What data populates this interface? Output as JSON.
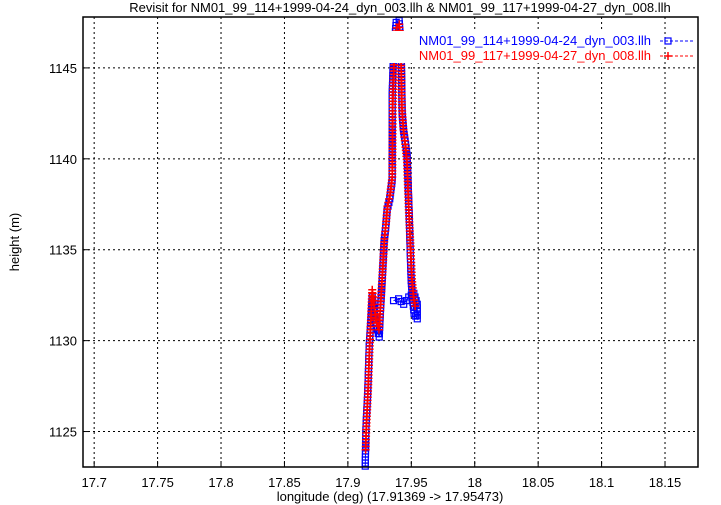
{
  "chart_data": {
    "type": "line",
    "title": "Revisit for NM01_99_114+1999-04-24_dyn_003.llh & NM01_99_117+1999-04-27_dyn_008.llh",
    "xlabel": "longitude (deg) (17.91369 -> 17.95473)",
    "ylabel": "height (m)",
    "xlim": [
      17.6912,
      18.176
    ],
    "ylim": [
      1123.05,
      1147.8
    ],
    "xticks": [
      "17.7",
      "17.75",
      "17.8",
      "17.85",
      "17.9",
      "17.95",
      "18",
      "18.05",
      "18.1",
      "18.15"
    ],
    "yticks": [
      "1125",
      "1130",
      "1135",
      "1140",
      "1145"
    ],
    "grid": true,
    "legend_position": "top-right",
    "series": [
      {
        "name": "NM01_99_114+1999-04-24_dyn_003.llh",
        "color": "#0000ff",
        "marker": "square",
        "x": [
          17.9137,
          17.9142,
          17.9148,
          17.9155,
          17.9162,
          17.9168,
          17.918,
          17.9192,
          17.9205,
          17.922,
          17.9247,
          17.9258,
          17.927,
          17.9286,
          17.9298,
          17.931,
          17.933,
          17.9349,
          17.9349,
          17.9349,
          17.9349,
          17.936,
          17.9381,
          17.9404,
          17.942,
          17.9428,
          17.944,
          17.9455,
          17.9467,
          17.9483,
          17.9491,
          17.9499,
          17.951,
          17.9522,
          17.9547,
          17.9547,
          17.952,
          17.948,
          17.944,
          17.94,
          17.936
        ],
        "y": [
          1123.1,
          1125.1,
          1126.0,
          1126.9,
          1128.3,
          1129.7,
          1131.0,
          1132.4,
          1131.6,
          1131.0,
          1130.2,
          1131.8,
          1133.3,
          1135.5,
          1136.2,
          1137.2,
          1137.8,
          1138.8,
          1139.9,
          1141.8,
          1143.5,
          1145.8,
          1147.5,
          1147.6,
          1146.2,
          1142.5,
          1141.5,
          1140.8,
          1140.2,
          1137.0,
          1135.0,
          1133.3,
          1132.3,
          1131.5,
          1131.2,
          1132.0,
          1132.6,
          1132.4,
          1132.0,
          1132.3,
          1132.2
        ]
      },
      {
        "name": "NM01_99_117+1999-04-27_dyn_008.llh",
        "color": "#ff0000",
        "marker": "plus",
        "x": [
          17.914,
          17.9146,
          17.9152,
          17.916,
          17.9168,
          17.9178,
          17.9192,
          17.9205,
          17.922,
          17.9245,
          17.9258,
          17.9272,
          17.9288,
          17.93,
          17.9312,
          17.9332,
          17.935,
          17.9352,
          17.9354,
          17.9365,
          17.9385,
          17.9405,
          17.9418,
          17.9426,
          17.9438,
          17.9452,
          17.9466,
          17.948,
          17.9494,
          17.9505,
          17.9518,
          17.953
        ],
        "y": [
          1124.0,
          1125.3,
          1126.2,
          1127.4,
          1129.0,
          1130.6,
          1132.8,
          1132.0,
          1131.2,
          1130.6,
          1132.0,
          1133.6,
          1135.6,
          1136.4,
          1137.4,
          1138.0,
          1139.0,
          1141.2,
          1143.0,
          1145.5,
          1147.2,
          1147.4,
          1145.8,
          1142.8,
          1141.6,
          1140.8,
          1139.8,
          1137.2,
          1135.2,
          1133.4,
          1132.4,
          1131.9
        ]
      }
    ]
  }
}
